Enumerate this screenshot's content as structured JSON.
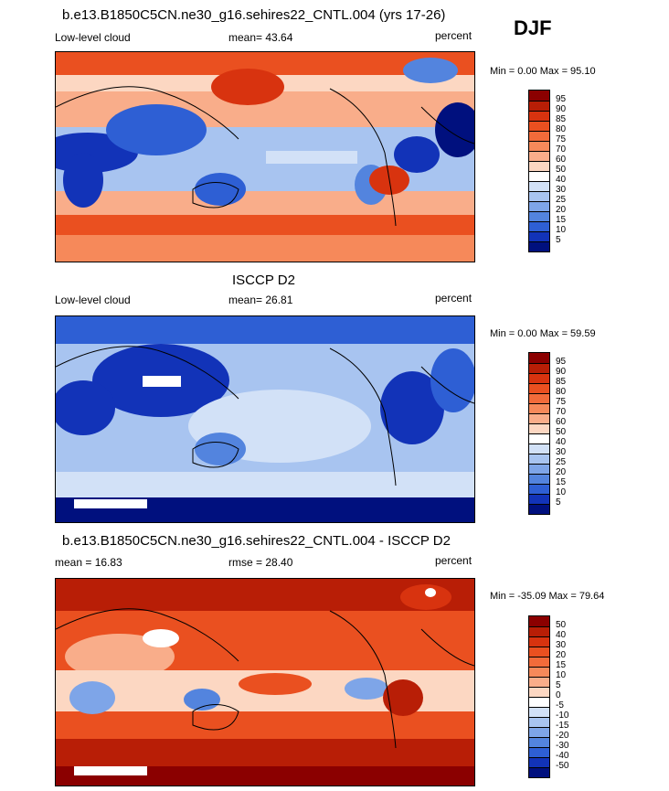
{
  "season": "DJF",
  "panels": [
    {
      "title": "b.e13.B1850C5CN.ne30_g16.sehires22_CNTL.004 (yrs 17-26)",
      "left_label": "Low-level cloud",
      "mid_label": "mean=  43.64",
      "right_label": "percent",
      "minmax": "Min =   0.00 Max =  95.10"
    },
    {
      "title": "ISCCP D2",
      "left_label": "Low-level cloud",
      "mid_label": "mean=  26.81",
      "right_label": "percent",
      "minmax": "Min =   0.00 Max =  59.59"
    },
    {
      "title": "b.e13.B1850C5CN.ne30_g16.sehires22_CNTL.004 - ISCCP D2",
      "left_label": "mean =  16.83",
      "mid_label": "rmse =  28.40",
      "right_label": "percent",
      "minmax": "Min = -35.09 Max =  79.64"
    }
  ],
  "colorbar_abs": {
    "labels": [
      "95",
      "90",
      "85",
      "80",
      "75",
      "70",
      "60",
      "50",
      "40",
      "30",
      "25",
      "20",
      "15",
      "10",
      "5"
    ],
    "colors": [
      "#8b0000",
      "#b81e06",
      "#d8330f",
      "#ea5020",
      "#f26b3a",
      "#f6895a",
      "#f9ad8a",
      "#fcd7c2",
      "#ffffff",
      "#d2e1f7",
      "#a8c4f0",
      "#7ea5e8",
      "#5384de",
      "#2e5fd4",
      "#1233b8",
      "#00107e"
    ]
  },
  "colorbar_diff": {
    "labels": [
      "50",
      "40",
      "30",
      "20",
      "15",
      "10",
      "5",
      "0",
      "-5",
      "-10",
      "-15",
      "-20",
      "-30",
      "-40",
      "-50"
    ],
    "colors": [
      "#8b0000",
      "#b81e06",
      "#d8330f",
      "#ea5020",
      "#f26b3a",
      "#f6895a",
      "#f9ad8a",
      "#fcd7c2",
      "#ffffff",
      "#d2e1f7",
      "#a8c4f0",
      "#7ea5e8",
      "#5384de",
      "#2e5fd4",
      "#1233b8",
      "#00107e"
    ]
  }
}
